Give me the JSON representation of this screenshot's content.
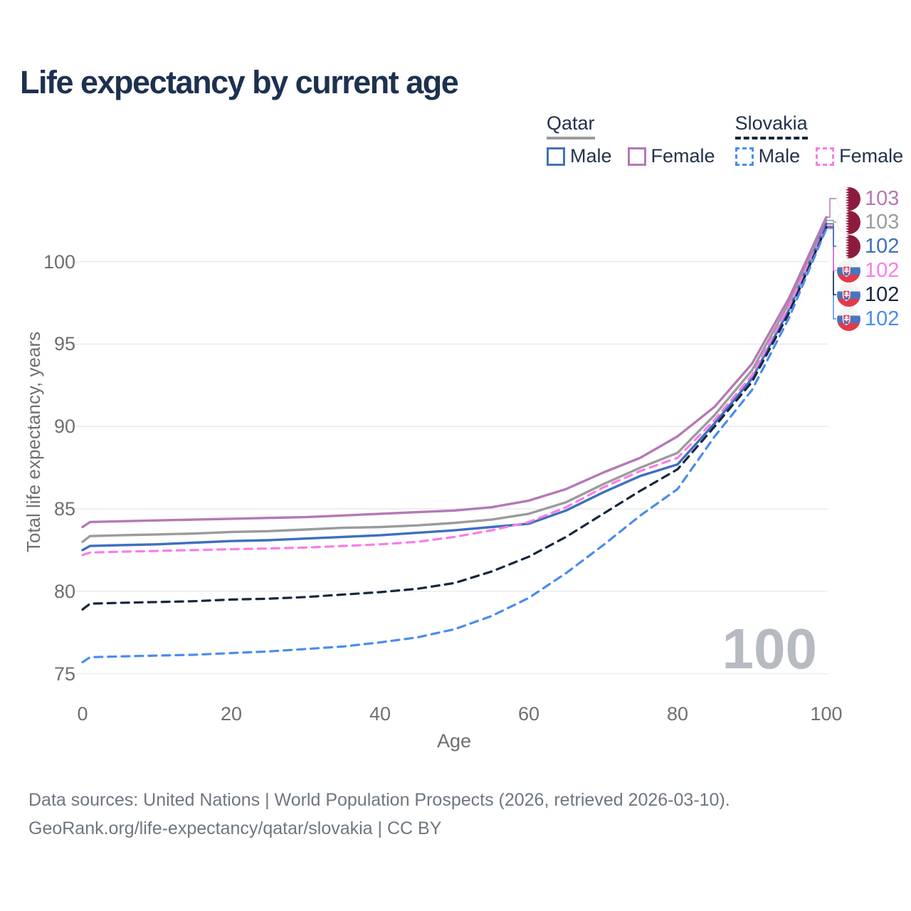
{
  "title": "Life expectancy by current age",
  "legend": {
    "groups": [
      {
        "label": "Qatar",
        "line_style": "solid",
        "underline_color": "#9b9b9b",
        "items": [
          {
            "label": "Male",
            "color": "#4272b8"
          },
          {
            "label": "Female",
            "color": "#b578b6"
          }
        ]
      },
      {
        "label": "Slovakia",
        "line_style": "dashed",
        "underline_color": "#16263d",
        "items": [
          {
            "label": "Male",
            "color": "#4a8bf0"
          },
          {
            "label": "Female",
            "color": "#fa7ce8"
          }
        ]
      }
    ]
  },
  "y_axis": {
    "label": "Total life expectancy, years",
    "ticks": [
      100,
      95,
      90,
      85,
      80,
      75
    ]
  },
  "x_axis": {
    "label": "Age",
    "ticks": [
      0,
      20,
      40,
      60,
      80,
      100
    ]
  },
  "watermark": "100",
  "end_labels": [
    {
      "value": "103",
      "color": "#b578b6",
      "flag": "qatar",
      "series": "qatar_female"
    },
    {
      "value": "103",
      "color": "#9b9b9b",
      "flag": "qatar",
      "series": "qatar_both"
    },
    {
      "value": "102",
      "color": "#3e6fbe",
      "flag": "qatar",
      "series": "qatar_male"
    },
    {
      "value": "102",
      "color": "#fa7ce8",
      "flag": "slovakia",
      "series": "slovakia_female"
    },
    {
      "value": "102",
      "color": "#16263d",
      "flag": "slovakia",
      "series": "slovakia_both"
    },
    {
      "value": "102",
      "color": "#4a8bf0",
      "flag": "slovakia",
      "series": "slovakia_male"
    }
  ],
  "footer": {
    "line1": "Data sources: United Nations | World Population Prospects (2026, retrieved 2026-03-10).",
    "line2": "GeoRank.org/life-expectancy/qatar/slovakia | CC BY"
  },
  "chart_data": {
    "type": "line",
    "title": "Life expectancy by current age",
    "xlabel": "Age",
    "ylabel": "Total life expectancy, years",
    "xlim": [
      0,
      100
    ],
    "ylim": [
      73,
      104
    ],
    "grid": true,
    "legend_position": "top-right",
    "x": [
      0,
      1,
      5,
      10,
      15,
      20,
      25,
      30,
      35,
      40,
      45,
      50,
      55,
      60,
      65,
      70,
      75,
      80,
      85,
      90,
      95,
      100
    ],
    "series": [
      {
        "id": "qatar_both",
        "name": "Qatar Both sexes",
        "country": "Qatar",
        "sex": "Both",
        "color": "#9b9b9b",
        "dash": false,
        "end_label": "103",
        "values": [
          83.0,
          83.35,
          83.4,
          83.45,
          83.5,
          83.6,
          83.65,
          83.75,
          83.85,
          83.9,
          84.0,
          84.15,
          84.35,
          84.7,
          85.4,
          86.5,
          87.5,
          88.4,
          90.7,
          93.4,
          97.5,
          102.5
        ]
      },
      {
        "id": "qatar_male",
        "name": "Qatar Male",
        "country": "Qatar",
        "sex": "Male",
        "color": "#3e6fbe",
        "dash": false,
        "end_label": "102",
        "values": [
          82.5,
          82.75,
          82.8,
          82.85,
          82.95,
          83.05,
          83.1,
          83.2,
          83.3,
          83.4,
          83.55,
          83.7,
          83.9,
          84.1,
          84.9,
          86.0,
          87.0,
          87.7,
          90.2,
          92.9,
          97.1,
          102.3
        ]
      },
      {
        "id": "slovakia_female",
        "name": "Slovakia Female",
        "country": "Slovakia",
        "sex": "Female",
        "color": "#fa7ce8",
        "dash": true,
        "end_label": "102",
        "values": [
          82.2,
          82.35,
          82.4,
          82.45,
          82.5,
          82.55,
          82.6,
          82.65,
          82.75,
          82.85,
          83.0,
          83.3,
          83.7,
          84.2,
          85.1,
          86.3,
          87.3,
          88.1,
          90.4,
          93.1,
          97.3,
          102.2
        ]
      },
      {
        "id": "slovakia_both",
        "name": "Slovakia Both sexes",
        "country": "Slovakia",
        "sex": "Both",
        "color": "#16263d",
        "dash": true,
        "end_label": "102",
        "values": [
          78.9,
          79.25,
          79.3,
          79.35,
          79.4,
          79.5,
          79.55,
          79.65,
          79.8,
          79.95,
          80.15,
          80.5,
          81.2,
          82.1,
          83.3,
          84.7,
          86.1,
          87.4,
          90.0,
          92.7,
          96.9,
          102.1
        ]
      },
      {
        "id": "slovakia_male",
        "name": "Slovakia Male",
        "country": "Slovakia",
        "sex": "Male",
        "color": "#4a8bf0",
        "dash": true,
        "end_label": "102",
        "values": [
          75.7,
          76.0,
          76.05,
          76.1,
          76.15,
          76.25,
          76.35,
          76.5,
          76.65,
          76.9,
          77.2,
          77.7,
          78.5,
          79.6,
          81.1,
          82.8,
          84.6,
          86.2,
          89.4,
          92.2,
          96.6,
          102.0
        ]
      },
      {
        "id": "qatar_female",
        "name": "Qatar Female",
        "country": "Qatar",
        "sex": "Female",
        "color": "#b578b6",
        "dash": false,
        "end_label": "103",
        "values": [
          83.9,
          84.2,
          84.25,
          84.3,
          84.35,
          84.4,
          84.45,
          84.5,
          84.6,
          84.7,
          84.8,
          84.9,
          85.1,
          85.5,
          86.2,
          87.2,
          88.1,
          89.4,
          91.2,
          93.8,
          97.8,
          102.7
        ]
      }
    ]
  }
}
